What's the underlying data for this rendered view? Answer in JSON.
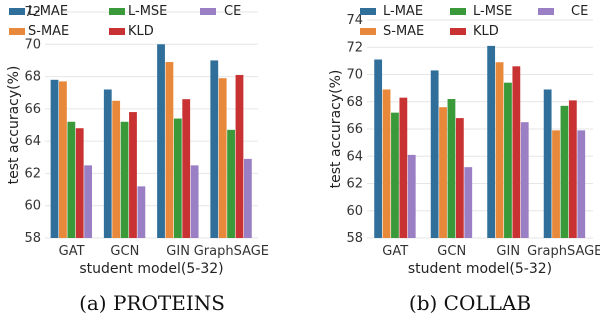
{
  "colors": {
    "L-MAE": "#2f6f9a",
    "S-MAE": "#e8883a",
    "L-MSE": "#3a9a3a",
    "KLD": "#c83232",
    "CE": "#9b7fc4"
  },
  "chart_data": [
    {
      "type": "bar",
      "caption": "(a) PROTEINS",
      "xlabel": "student model(5-32)",
      "ylabel": "test accuracy(%)",
      "ylim": [
        58,
        72
      ],
      "yticks": [
        "58",
        "60",
        "62",
        "64",
        "66",
        "68",
        "70",
        "72"
      ],
      "categories": [
        "GAT",
        "GCN",
        "GIN",
        "GraphSAGE"
      ],
      "legend": [
        "L-MAE",
        "L-MSE",
        "CE",
        "S-MAE",
        "KLD"
      ],
      "grid": true,
      "series": [
        {
          "name": "L-MAE",
          "values": [
            67.8,
            67.2,
            70.0,
            69.0
          ]
        },
        {
          "name": "S-MAE",
          "values": [
            67.7,
            66.5,
            68.9,
            67.9
          ]
        },
        {
          "name": "L-MSE",
          "values": [
            65.2,
            65.2,
            65.4,
            64.7
          ]
        },
        {
          "name": "KLD",
          "values": [
            64.8,
            65.8,
            66.6,
            68.1
          ]
        },
        {
          "name": "CE",
          "values": [
            62.5,
            61.2,
            62.5,
            62.9
          ]
        }
      ]
    },
    {
      "type": "bar",
      "caption": "(b) COLLAB",
      "xlabel": "student model(5-32)",
      "ylabel": "test accuracy(%)",
      "ylim": [
        58,
        74
      ],
      "yticks": [
        "58",
        "60",
        "62",
        "64",
        "66",
        "68",
        "70",
        "72",
        "74"
      ],
      "categories": [
        "GAT",
        "GCN",
        "GIN",
        "GraphSAGE"
      ],
      "legend": [
        "L-MAE",
        "L-MSE",
        "CE",
        "S-MAE",
        "KLD"
      ],
      "grid": true,
      "series": [
        {
          "name": "L-MAE",
          "values": [
            71.1,
            70.3,
            72.1,
            68.9
          ]
        },
        {
          "name": "S-MAE",
          "values": [
            68.9,
            67.6,
            70.9,
            65.9
          ]
        },
        {
          "name": "L-MSE",
          "values": [
            67.2,
            68.2,
            69.4,
            67.7
          ]
        },
        {
          "name": "KLD",
          "values": [
            68.3,
            66.8,
            70.6,
            68.1
          ]
        },
        {
          "name": "CE",
          "values": [
            64.1,
            63.2,
            66.5,
            65.9
          ]
        }
      ]
    }
  ]
}
